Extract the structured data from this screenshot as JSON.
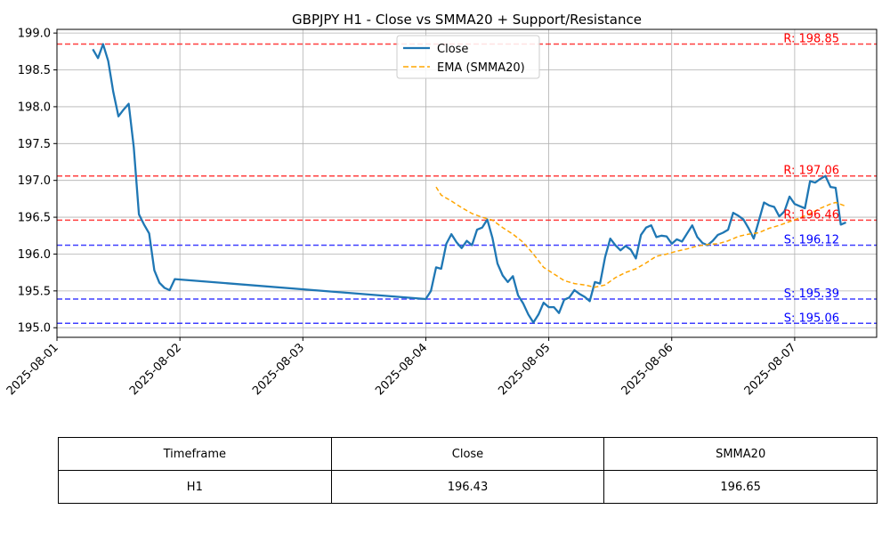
{
  "chart_data": {
    "type": "line",
    "title": "GBPJPY H1 - Close vs SMMA20 + Support/Resistance",
    "xlabel": "",
    "ylabel": "",
    "xlim": [
      "2025-08-01T00:00",
      "2025-08-07T16:00"
    ],
    "ylim": [
      194.87,
      199.05
    ],
    "x_ticks": [
      "2025-08-01",
      "2025-08-02",
      "2025-08-03",
      "2025-08-04",
      "2025-08-05",
      "2025-08-06",
      "2025-08-07"
    ],
    "y_ticks": [
      195.0,
      195.5,
      196.0,
      196.5,
      197.0,
      197.5,
      198.0,
      198.5,
      199.0
    ],
    "y_tick_labels": [
      "195.0",
      "195.5",
      "196.0",
      "196.5",
      "197.0",
      "197.5",
      "198.0",
      "198.5",
      "199.0"
    ],
    "grid": true,
    "legend_position": "upper center",
    "series": [
      {
        "name": "Close",
        "color": "#1f77b4",
        "style": "solid",
        "points": [
          [
            "2025-08-01T07:00",
            198.78
          ],
          [
            "2025-08-01T08:00",
            198.66
          ],
          [
            "2025-08-01T09:00",
            198.85
          ],
          [
            "2025-08-01T10:00",
            198.62
          ],
          [
            "2025-08-01T11:00",
            198.2
          ],
          [
            "2025-08-01T12:00",
            197.87
          ],
          [
            "2025-08-01T13:00",
            197.96
          ],
          [
            "2025-08-01T14:00",
            198.04
          ],
          [
            "2025-08-01T15:00",
            197.45
          ],
          [
            "2025-08-01T16:00",
            196.54
          ],
          [
            "2025-08-01T17:00",
            196.4
          ],
          [
            "2025-08-01T18:00",
            196.28
          ],
          [
            "2025-08-01T19:00",
            195.78
          ],
          [
            "2025-08-01T20:00",
            195.61
          ],
          [
            "2025-08-01T21:00",
            195.54
          ],
          [
            "2025-08-01T22:00",
            195.51
          ],
          [
            "2025-08-01T23:00",
            195.66
          ],
          [
            "2025-08-04T00:00",
            195.39
          ],
          [
            "2025-08-04T01:00",
            195.5
          ],
          [
            "2025-08-04T02:00",
            195.82
          ],
          [
            "2025-08-04T03:00",
            195.8
          ],
          [
            "2025-08-04T04:00",
            196.14
          ],
          [
            "2025-08-04T05:00",
            196.27
          ],
          [
            "2025-08-04T06:00",
            196.16
          ],
          [
            "2025-08-04T07:00",
            196.08
          ],
          [
            "2025-08-04T08:00",
            196.18
          ],
          [
            "2025-08-04T09:00",
            196.12
          ],
          [
            "2025-08-04T10:00",
            196.33
          ],
          [
            "2025-08-04T11:00",
            196.36
          ],
          [
            "2025-08-04T12:00",
            196.47
          ],
          [
            "2025-08-04T13:00",
            196.22
          ],
          [
            "2025-08-04T14:00",
            195.87
          ],
          [
            "2025-08-04T15:00",
            195.71
          ],
          [
            "2025-08-04T16:00",
            195.62
          ],
          [
            "2025-08-04T17:00",
            195.7
          ],
          [
            "2025-08-04T18:00",
            195.44
          ],
          [
            "2025-08-04T19:00",
            195.33
          ],
          [
            "2025-08-04T20:00",
            195.18
          ],
          [
            "2025-08-04T21:00",
            195.07
          ],
          [
            "2025-08-04T22:00",
            195.18
          ],
          [
            "2025-08-04T23:00",
            195.34
          ],
          [
            "2025-08-05T00:00",
            195.28
          ],
          [
            "2025-08-05T01:00",
            195.28
          ],
          [
            "2025-08-05T02:00",
            195.2
          ],
          [
            "2025-08-05T03:00",
            195.38
          ],
          [
            "2025-08-05T04:00",
            195.41
          ],
          [
            "2025-08-05T05:00",
            195.51
          ],
          [
            "2025-08-05T06:00",
            195.46
          ],
          [
            "2025-08-05T07:00",
            195.42
          ],
          [
            "2025-08-05T08:00",
            195.36
          ],
          [
            "2025-08-05T09:00",
            195.62
          ],
          [
            "2025-08-05T10:00",
            195.6
          ],
          [
            "2025-08-05T11:00",
            195.96
          ],
          [
            "2025-08-05T12:00",
            196.21
          ],
          [
            "2025-08-05T13:00",
            196.12
          ],
          [
            "2025-08-05T14:00",
            196.05
          ],
          [
            "2025-08-05T15:00",
            196.11
          ],
          [
            "2025-08-05T16:00",
            196.06
          ],
          [
            "2025-08-05T17:00",
            195.94
          ],
          [
            "2025-08-05T18:00",
            196.26
          ],
          [
            "2025-08-05T19:00",
            196.36
          ],
          [
            "2025-08-05T20:00",
            196.39
          ],
          [
            "2025-08-05T21:00",
            196.23
          ],
          [
            "2025-08-05T22:00",
            196.25
          ],
          [
            "2025-08-05T23:00",
            196.24
          ],
          [
            "2025-08-06T00:00",
            196.14
          ],
          [
            "2025-08-06T01:00",
            196.2
          ],
          [
            "2025-08-06T02:00",
            196.17
          ],
          [
            "2025-08-06T03:00",
            196.28
          ],
          [
            "2025-08-06T04:00",
            196.39
          ],
          [
            "2025-08-06T05:00",
            196.23
          ],
          [
            "2025-08-06T06:00",
            196.15
          ],
          [
            "2025-08-06T07:00",
            196.12
          ],
          [
            "2025-08-06T08:00",
            196.18
          ],
          [
            "2025-08-06T09:00",
            196.26
          ],
          [
            "2025-08-06T10:00",
            196.29
          ],
          [
            "2025-08-06T11:00",
            196.33
          ],
          [
            "2025-08-06T12:00",
            196.56
          ],
          [
            "2025-08-06T13:00",
            196.52
          ],
          [
            "2025-08-06T14:00",
            196.47
          ],
          [
            "2025-08-06T15:00",
            196.35
          ],
          [
            "2025-08-06T16:00",
            196.21
          ],
          [
            "2025-08-06T17:00",
            196.45
          ],
          [
            "2025-08-06T18:00",
            196.7
          ],
          [
            "2025-08-06T19:00",
            196.66
          ],
          [
            "2025-08-06T20:00",
            196.64
          ],
          [
            "2025-08-06T21:00",
            196.51
          ],
          [
            "2025-08-06T22:00",
            196.58
          ],
          [
            "2025-08-06T23:00",
            196.78
          ],
          [
            "2025-08-07T00:00",
            196.68
          ],
          [
            "2025-08-07T01:00",
            196.65
          ],
          [
            "2025-08-07T02:00",
            196.62
          ],
          [
            "2025-08-07T03:00",
            196.99
          ],
          [
            "2025-08-07T04:00",
            196.97
          ],
          [
            "2025-08-07T05:00",
            197.02
          ],
          [
            "2025-08-07T06:00",
            197.06
          ],
          [
            "2025-08-07T07:00",
            196.91
          ],
          [
            "2025-08-07T08:00",
            196.9
          ],
          [
            "2025-08-07T09:00",
            196.4
          ],
          [
            "2025-08-07T10:00",
            196.43
          ]
        ]
      },
      {
        "name": "EMA (SMMA20)",
        "color": "#ffa500",
        "style": "dashed",
        "points": [
          [
            "2025-08-04T02:00",
            196.91
          ],
          [
            "2025-08-04T03:00",
            196.8
          ],
          [
            "2025-08-04T05:00",
            196.72
          ],
          [
            "2025-08-04T07:00",
            196.63
          ],
          [
            "2025-08-04T09:00",
            196.55
          ],
          [
            "2025-08-04T11:00",
            196.5
          ],
          [
            "2025-08-04T13:00",
            196.46
          ],
          [
            "2025-08-04T15:00",
            196.36
          ],
          [
            "2025-08-04T17:00",
            196.27
          ],
          [
            "2025-08-04T19:00",
            196.16
          ],
          [
            "2025-08-04T21:00",
            196.0
          ],
          [
            "2025-08-04T23:00",
            195.82
          ],
          [
            "2025-08-05T01:00",
            195.73
          ],
          [
            "2025-08-05T03:00",
            195.64
          ],
          [
            "2025-08-05T05:00",
            195.6
          ],
          [
            "2025-08-05T07:00",
            195.58
          ],
          [
            "2025-08-05T09:00",
            195.55
          ],
          [
            "2025-08-05T11:00",
            195.58
          ],
          [
            "2025-08-05T13:00",
            195.68
          ],
          [
            "2025-08-05T15:00",
            195.75
          ],
          [
            "2025-08-05T17:00",
            195.8
          ],
          [
            "2025-08-05T19:00",
            195.88
          ],
          [
            "2025-08-05T21:00",
            195.97
          ],
          [
            "2025-08-05T23:00",
            196.0
          ],
          [
            "2025-08-06T01:00",
            196.04
          ],
          [
            "2025-08-06T03:00",
            196.07
          ],
          [
            "2025-08-06T05:00",
            196.11
          ],
          [
            "2025-08-06T07:00",
            196.13
          ],
          [
            "2025-08-06T09:00",
            196.14
          ],
          [
            "2025-08-06T11:00",
            196.18
          ],
          [
            "2025-08-06T13:00",
            196.24
          ],
          [
            "2025-08-06T15:00",
            196.27
          ],
          [
            "2025-08-06T17:00",
            196.29
          ],
          [
            "2025-08-06T19:00",
            196.35
          ],
          [
            "2025-08-06T21:00",
            196.39
          ],
          [
            "2025-08-06T23:00",
            196.44
          ],
          [
            "2025-08-07T01:00",
            196.49
          ],
          [
            "2025-08-07T03:00",
            196.55
          ],
          [
            "2025-08-07T05:00",
            196.62
          ],
          [
            "2025-08-07T07:00",
            196.68
          ],
          [
            "2025-08-07T08:00",
            196.7
          ],
          [
            "2025-08-07T10:00",
            196.65
          ]
        ]
      }
    ],
    "levels": [
      {
        "kind": "resistance",
        "value": 198.85,
        "label": "R: 198.85",
        "color": "#ff0000"
      },
      {
        "kind": "resistance",
        "value": 197.06,
        "label": "R: 197.06",
        "color": "#ff0000"
      },
      {
        "kind": "resistance",
        "value": 196.46,
        "label": "R: 196.46",
        "color": "#ff0000"
      },
      {
        "kind": "support",
        "value": 196.12,
        "label": "S: 196.12",
        "color": "#0000ff"
      },
      {
        "kind": "support",
        "value": 195.39,
        "label": "S: 195.39",
        "color": "#0000ff"
      },
      {
        "kind": "support",
        "value": 195.06,
        "label": "S: 195.06",
        "color": "#0000ff"
      }
    ]
  },
  "table": {
    "headers": [
      "Timeframe",
      "Close",
      "SMMA20"
    ],
    "rows": [
      [
        "H1",
        "196.43",
        "196.65"
      ]
    ]
  }
}
